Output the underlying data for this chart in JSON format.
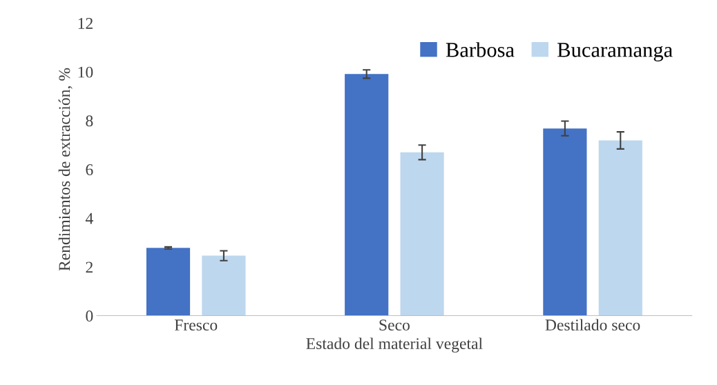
{
  "chart_data": {
    "type": "bar",
    "xlabel": "Estado del material vegetal",
    "ylabel": "Rendimientos de extracción, %",
    "categories": [
      "Fresco",
      "Seco",
      "Destilado seco"
    ],
    "series": [
      {
        "name": "Barbosa",
        "color": "#4472c4",
        "values": [
          2.78,
          9.91,
          7.68
        ],
        "errors": [
          0.04,
          0.17,
          0.3
        ]
      },
      {
        "name": "Bucaramanga",
        "color": "#bdd7ee",
        "values": [
          2.46,
          6.7,
          7.19
        ],
        "errors": [
          0.2,
          0.3,
          0.35
        ]
      }
    ],
    "ylim": [
      0,
      12
    ],
    "yticks": [
      0,
      2,
      4,
      6,
      8,
      10,
      12
    ],
    "grid": false,
    "legend": "top right"
  }
}
